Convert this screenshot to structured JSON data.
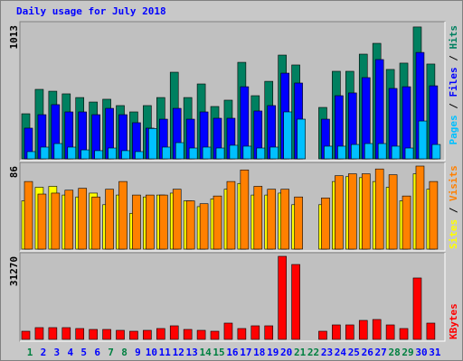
{
  "chart_data": {
    "type": "bar",
    "title": "Daily usage for July 2018",
    "categories": [
      "1",
      "2",
      "3",
      "4",
      "5",
      "6",
      "7",
      "8",
      "9",
      "10",
      "11",
      "12",
      "13",
      "14",
      "15",
      "16",
      "17",
      "18",
      "19",
      "20",
      "21",
      "22",
      "23",
      "24",
      "25",
      "26",
      "27",
      "28",
      "29",
      "30",
      "31"
    ],
    "category_colors": [
      "#008040",
      "#0000ff",
      "#0000ff",
      "#0000ff",
      "#0000ff",
      "#0000ff",
      "#008040",
      "#008040",
      "#0000ff",
      "#0000ff",
      "#0000ff",
      "#0000ff",
      "#0000ff",
      "#008040",
      "#008040",
      "#0000ff",
      "#0000ff",
      "#0000ff",
      "#0000ff",
      "#0000ff",
      "#008040",
      "#008040",
      "#0000ff",
      "#0000ff",
      "#0000ff",
      "#0000ff",
      "#0000ff",
      "#008040",
      "#008040",
      "#0000ff",
      "#0000ff"
    ],
    "legend_separator": " / ",
    "panels": [
      {
        "ylim": [
          0,
          1013
        ],
        "yticks": [
          1013
        ],
        "series": [
          {
            "name": "Pages",
            "color": "#00c0ff",
            "values": [
              55,
              89,
              116,
              89,
              68,
              62,
              82,
              62,
              55,
              230,
              89,
              123,
              82,
              89,
              82,
              103,
              96,
              82,
              89,
              356,
              301,
              null,
              96,
              96,
              109,
              116,
              116,
              96,
              82,
              287,
              109
            ]
          },
          {
            "name": "Files",
            "color": "#0000ff",
            "values": [
              233,
              335,
              411,
              356,
              356,
              335,
              383,
              335,
              274,
              233,
              301,
              383,
              301,
              356,
              308,
              308,
              547,
              363,
              404,
              650,
              575,
              null,
              301,
              479,
              500,
              616,
              753,
              534,
              547,
              807,
              554
            ]
          },
          {
            "name": "Hits",
            "color": "#008060",
            "values": [
              342,
              527,
              513,
              493,
              465,
              431,
              452,
              404,
              356,
              404,
              465,
              657,
              465,
              568,
              397,
              445,
              732,
              479,
              588,
              787,
              712,
              null,
              390,
              664,
              664,
              794,
              876,
              678,
              726,
              1000,
              719
            ]
          }
        ]
      },
      {
        "ylim": [
          0,
          86
        ],
        "yticks": [
          86
        ],
        "series": [
          {
            "name": "Sites",
            "color": "#ffff00",
            "values": [
              50,
              64,
              65,
              56,
              54,
              58,
              46,
              56,
              37,
              54,
              56,
              58,
              50,
              44,
              52,
              62,
              68,
              56,
              56,
              58,
              46,
              null,
              46,
              70,
              75,
              74,
              70,
              64,
              50,
              78,
              62
            ]
          },
          {
            "name": "Visits",
            "color": "#ff8000",
            "values": [
              70,
              57,
              58,
              61,
              63,
              54,
              62,
              70,
              56,
              56,
              56,
              62,
              50,
              47,
              55,
              70,
              82,
              65,
              62,
              62,
              54,
              null,
              53,
              76,
              78,
              78,
              83,
              77,
              55,
              86,
              70
            ]
          }
        ]
      },
      {
        "ylim": [
          0,
          31270
        ],
        "yticks": [
          31270
        ],
        "series": [
          {
            "name": "KBytes",
            "color": "#ff0000",
            "values": [
              3060,
              4420,
              4420,
              4420,
              4080,
              3740,
              3740,
              3400,
              3060,
              3400,
              4080,
              5100,
              3740,
              3400,
              3060,
              6120,
              4080,
              5100,
              5100,
              31270,
              28200,
              null,
              3060,
              5440,
              5440,
              7140,
              7480,
              5440,
              4080,
              23120,
              6120
            ]
          }
        ]
      }
    ]
  }
}
